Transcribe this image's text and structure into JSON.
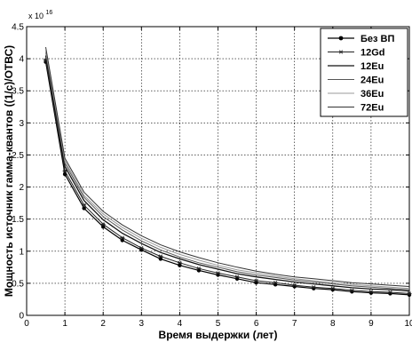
{
  "chart_data": {
    "type": "line",
    "title": "",
    "xlabel": "Время выдержки (лет)",
    "ylabel": "Мощность источник гамма-квантов ((1/с)/ОТВС)",
    "y_multiplier_label": "x 10",
    "y_multiplier_exponent": "16",
    "xlim": [
      0,
      10
    ],
    "ylim": [
      0,
      4.5
    ],
    "x_ticks": [
      "0",
      "1",
      "2",
      "3",
      "4",
      "5",
      "6",
      "7",
      "8",
      "9",
      "10"
    ],
    "y_ticks": [
      "0",
      "0.5",
      "1",
      "1.5",
      "2",
      "2.5",
      "3",
      "3.5",
      "4",
      "4.5"
    ],
    "grid": true,
    "legend_position": "top-right",
    "x": [
      0.5,
      1,
      1.5,
      2,
      2.5,
      3,
      3.5,
      4,
      4.5,
      5,
      5.5,
      6,
      6.5,
      7,
      7.5,
      8,
      8.5,
      9,
      9.5,
      10
    ],
    "series": [
      {
        "name": "Без ВП",
        "marker": "dot",
        "color": "#000000",
        "values": [
          3.95,
          2.2,
          1.67,
          1.38,
          1.17,
          1.02,
          0.88,
          0.78,
          0.7,
          0.63,
          0.57,
          0.51,
          0.48,
          0.45,
          0.42,
          0.4,
          0.37,
          0.35,
          0.34,
          0.32
        ]
      },
      {
        "name": "12Gd",
        "marker": "star",
        "color": "#222222",
        "values": [
          3.98,
          2.25,
          1.72,
          1.42,
          1.21,
          1.05,
          0.92,
          0.82,
          0.73,
          0.66,
          0.6,
          0.54,
          0.51,
          0.47,
          0.44,
          0.42,
          0.39,
          0.37,
          0.36,
          0.34
        ]
      },
      {
        "name": "12Eu",
        "marker": "none",
        "color": "#111111",
        "values": [
          4.05,
          2.32,
          1.79,
          1.49,
          1.28,
          1.12,
          0.98,
          0.88,
          0.79,
          0.72,
          0.65,
          0.6,
          0.56,
          0.52,
          0.49,
          0.46,
          0.43,
          0.41,
          0.4,
          0.38
        ]
      },
      {
        "name": "24Eu",
        "marker": "none",
        "color": "#555555",
        "values": [
          4.1,
          2.37,
          1.84,
          1.54,
          1.33,
          1.16,
          1.02,
          0.91,
          0.82,
          0.75,
          0.68,
          0.63,
          0.59,
          0.55,
          0.52,
          0.49,
          0.46,
          0.44,
          0.42,
          0.4
        ]
      },
      {
        "name": "36Eu",
        "marker": "none",
        "color": "#999999",
        "values": [
          4.13,
          2.41,
          1.87,
          1.58,
          1.37,
          1.2,
          1.06,
          0.95,
          0.86,
          0.78,
          0.71,
          0.66,
          0.61,
          0.57,
          0.54,
          0.51,
          0.48,
          0.46,
          0.44,
          0.42
        ]
      },
      {
        "name": "72Eu",
        "marker": "none",
        "color": "#333333",
        "values": [
          4.18,
          2.45,
          1.92,
          1.62,
          1.41,
          1.24,
          1.1,
          0.99,
          0.9,
          0.82,
          0.75,
          0.69,
          0.64,
          0.6,
          0.57,
          0.54,
          0.51,
          0.49,
          0.47,
          0.45
        ]
      }
    ]
  }
}
